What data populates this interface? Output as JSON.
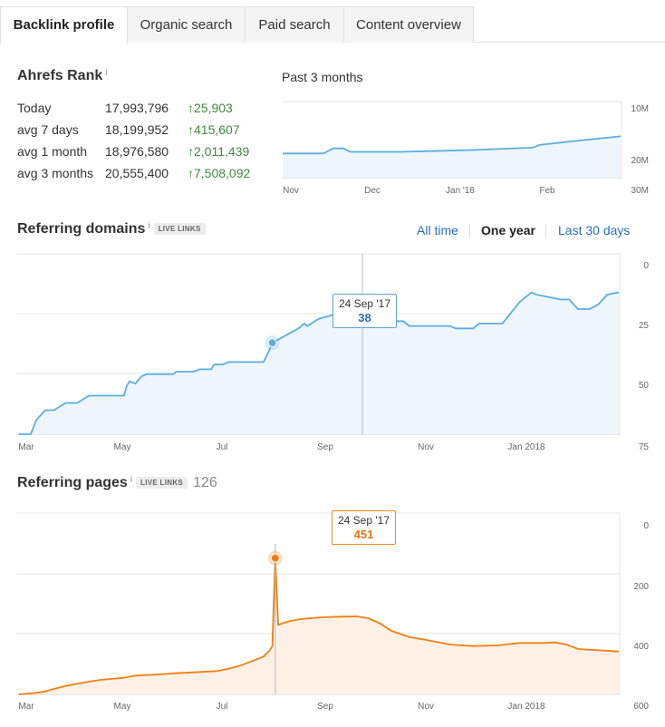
{
  "tabs": [
    {
      "label": "Backlink profile",
      "active": true
    },
    {
      "label": "Organic search",
      "active": false
    },
    {
      "label": "Paid search",
      "active": false
    },
    {
      "label": "Content overview",
      "active": false
    }
  ],
  "ahrefs_rank": {
    "title": "Ahrefs Rank",
    "info": "i",
    "rows": [
      {
        "label": "Today",
        "value": "17,993,796",
        "change": "↑25,903"
      },
      {
        "label": "avg 7 days",
        "value": "18,199,952",
        "change": "↑415,607"
      },
      {
        "label": "avg 1 month",
        "value": "18,976,580",
        "change": "↑2,011,439"
      },
      {
        "label": "avg 3 months",
        "value": "20,555,400",
        "change": "↑7,508,092"
      }
    ],
    "chart_label": "Past 3 months"
  },
  "referring_domains": {
    "title": "Referring domains",
    "info": "i",
    "badge": "LIVE LINKS",
    "ranges": [
      "All time",
      "One year",
      "Last 30 days"
    ],
    "active_range": "One year",
    "tooltip": {
      "date": "24 Sep '17",
      "value": "38"
    }
  },
  "referring_pages": {
    "title": "Referring pages",
    "info": "i",
    "badge": "LIVE LINKS",
    "count": "126",
    "tooltip": {
      "date": "24 Sep '17",
      "value": "451"
    }
  },
  "colors": {
    "blue_line": "#5aaee0",
    "blue_fill": "#eef6fc",
    "orange_line": "#f07f12",
    "orange_fill": "#fdf1e6",
    "positive": "#3d8b3d"
  },
  "chart_data": [
    {
      "type": "area",
      "name": "ahrefs-rank",
      "x_ticks": [
        "Nov",
        "Dec",
        "Jan '18",
        "Feb"
      ],
      "y_ticks": [
        "10M",
        "20M",
        "30M"
      ],
      "ylim": [
        10000000,
        30000000
      ],
      "y_inverted": true,
      "points": [
        [
          0,
          23000000
        ],
        [
          12,
          23000000
        ],
        [
          15,
          21500000
        ],
        [
          18,
          21500000
        ],
        [
          20,
          22500000
        ],
        [
          35,
          22500000
        ],
        [
          55,
          22000000
        ],
        [
          74,
          21300000
        ],
        [
          76,
          20500000
        ],
        [
          85,
          19500000
        ],
        [
          100,
          18000000
        ]
      ]
    },
    {
      "type": "area",
      "name": "referring-domains",
      "x_ticks": [
        "Mar",
        "May",
        "Jul",
        "Sep",
        "Nov",
        "Jan 2018"
      ],
      "y_ticks": [
        0,
        25,
        50,
        75
      ],
      "ylim": [
        0,
        75
      ],
      "points": [
        [
          0,
          0
        ],
        [
          4,
          0
        ],
        [
          6,
          6
        ],
        [
          9,
          10
        ],
        [
          12,
          10
        ],
        [
          16,
          13
        ],
        [
          20,
          13
        ],
        [
          24,
          16
        ],
        [
          36,
          16
        ],
        [
          37,
          20
        ],
        [
          38,
          22
        ],
        [
          40,
          21
        ],
        [
          42,
          24
        ],
        [
          44,
          25
        ],
        [
          53,
          25
        ],
        [
          54,
          26
        ],
        [
          60,
          26
        ],
        [
          62,
          27
        ],
        [
          66,
          27
        ],
        [
          67,
          29
        ],
        [
          70,
          29
        ],
        [
          72,
          30
        ],
        [
          84,
          30
        ],
        [
          86,
          35
        ],
        [
          87,
          38
        ],
        [
          90,
          40
        ],
        [
          93,
          42
        ],
        [
          96,
          44
        ],
        [
          97,
          45
        ],
        [
          98,
          46
        ],
        [
          99,
          45
        ],
        [
          103,
          48
        ],
        [
          106,
          49
        ],
        [
          109,
          50
        ],
        [
          112,
          50
        ],
        [
          118,
          50
        ],
        [
          120,
          48
        ],
        [
          125,
          48
        ],
        [
          127,
          47
        ],
        [
          132,
          47
        ],
        [
          134,
          45
        ],
        [
          148,
          45
        ],
        [
          150,
          44
        ],
        [
          156,
          44
        ],
        [
          158,
          46
        ],
        [
          166,
          46
        ],
        [
          168,
          49
        ],
        [
          170,
          52
        ],
        [
          172,
          55
        ],
        [
          174,
          57
        ],
        [
          176,
          59
        ],
        [
          178,
          58
        ],
        [
          182,
          57
        ],
        [
          186,
          56
        ],
        [
          189,
          56
        ],
        [
          192,
          52
        ],
        [
          196,
          52
        ],
        [
          199,
          54
        ],
        [
          202,
          58
        ],
        [
          206,
          59
        ]
      ]
    },
    {
      "type": "area",
      "name": "referring-pages",
      "x_ticks": [
        "Mar",
        "May",
        "Jul",
        "Sep",
        "Nov",
        "Jan 2018"
      ],
      "y_ticks": [
        0,
        200,
        400,
        600
      ],
      "ylim": [
        0,
        600
      ],
      "points": [
        [
          0,
          0
        ],
        [
          6,
          5
        ],
        [
          9,
          10
        ],
        [
          12,
          18
        ],
        [
          16,
          28
        ],
        [
          20,
          35
        ],
        [
          24,
          42
        ],
        [
          28,
          48
        ],
        [
          36,
          55
        ],
        [
          40,
          62
        ],
        [
          48,
          66
        ],
        [
          54,
          70
        ],
        [
          60,
          73
        ],
        [
          68,
          77
        ],
        [
          72,
          85
        ],
        [
          76,
          95
        ],
        [
          80,
          110
        ],
        [
          84,
          125
        ],
        [
          86,
          145
        ],
        [
          87,
          160
        ],
        [
          88,
          451
        ],
        [
          89,
          230
        ],
        [
          92,
          240
        ],
        [
          96,
          248
        ],
        [
          100,
          252
        ],
        [
          104,
          255
        ],
        [
          110,
          257
        ],
        [
          116,
          258
        ],
        [
          120,
          252
        ],
        [
          124,
          235
        ],
        [
          128,
          210
        ],
        [
          134,
          190
        ],
        [
          140,
          180
        ],
        [
          148,
          165
        ],
        [
          156,
          160
        ],
        [
          164,
          162
        ],
        [
          172,
          170
        ],
        [
          180,
          170
        ],
        [
          184,
          172
        ],
        [
          188,
          165
        ],
        [
          192,
          150
        ],
        [
          206,
          142
        ]
      ]
    }
  ]
}
